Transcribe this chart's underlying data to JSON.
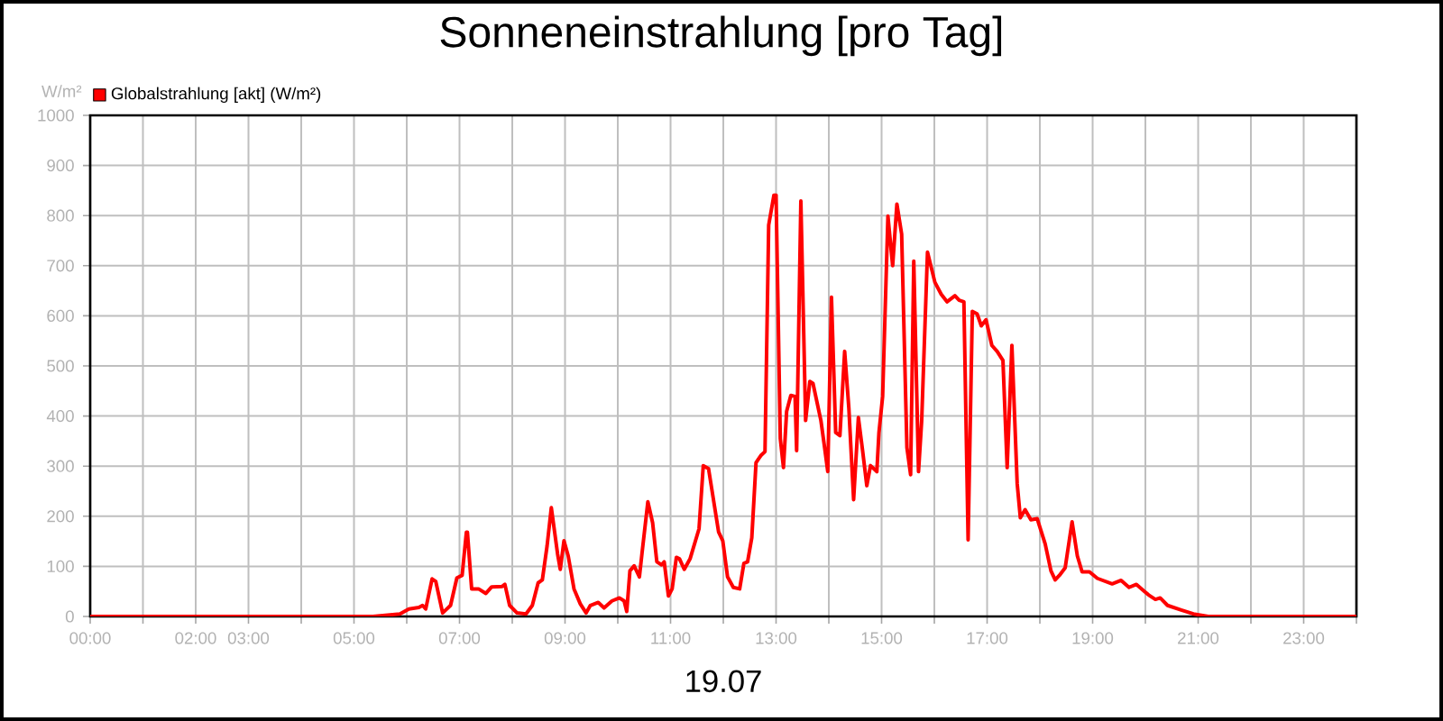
{
  "chart_data": {
    "type": "line",
    "title": "Sonneneinstrahlung [pro Tag]",
    "xlabel": "19.07",
    "ylabel": "W/m²",
    "xlim": [
      0,
      24
    ],
    "ylim": [
      0,
      1000
    ],
    "xticks": [
      {
        "value": 0,
        "label": "00:00"
      },
      {
        "value": 1,
        "label": null
      },
      {
        "value": 2,
        "label": "02:00"
      },
      {
        "value": 3,
        "label": "03:00"
      },
      {
        "value": 4,
        "label": null
      },
      {
        "value": 5,
        "label": "05:00"
      },
      {
        "value": 6,
        "label": null
      },
      {
        "value": 7,
        "label": "07:00"
      },
      {
        "value": 8,
        "label": null
      },
      {
        "value": 9,
        "label": "09:00"
      },
      {
        "value": 10,
        "label": null
      },
      {
        "value": 11,
        "label": "11:00"
      },
      {
        "value": 12,
        "label": null
      },
      {
        "value": 13,
        "label": "13:00"
      },
      {
        "value": 14,
        "label": null
      },
      {
        "value": 15,
        "label": "15:00"
      },
      {
        "value": 16,
        "label": null
      },
      {
        "value": 17,
        "label": "17:00"
      },
      {
        "value": 18,
        "label": null
      },
      {
        "value": 19,
        "label": "19:00"
      },
      {
        "value": 20,
        "label": null
      },
      {
        "value": 21,
        "label": "21:00"
      },
      {
        "value": 22,
        "label": null
      },
      {
        "value": 23,
        "label": "23:00"
      },
      {
        "value": 24,
        "label": null
      }
    ],
    "yticks": [
      0,
      100,
      200,
      300,
      400,
      500,
      600,
      700,
      800,
      900,
      1000
    ],
    "grid": true,
    "legend": "top left",
    "marker": "none",
    "line_style": "solid",
    "series": [
      {
        "name": "Globalstrahlung [akt] (W/m²)",
        "color": "#ff0000",
        "x": [
          0,
          5.36,
          5.87,
          6.04,
          6.23,
          6.3,
          6.36,
          6.48,
          6.55,
          6.68,
          6.83,
          6.95,
          7.05,
          7.13,
          7.15,
          7.23,
          7.36,
          7.5,
          7.61,
          7.81,
          7.86,
          7.95,
          8.09,
          8.26,
          8.38,
          8.49,
          8.57,
          8.66,
          8.74,
          8.86,
          8.91,
          8.98,
          9.06,
          9.17,
          9.29,
          9.4,
          9.48,
          9.63,
          9.74,
          9.89,
          10.03,
          10.12,
          10.17,
          10.23,
          10.31,
          10.41,
          10.46,
          10.57,
          10.66,
          10.74,
          10.83,
          10.88,
          10.96,
          11.03,
          11.11,
          11.17,
          11.26,
          11.37,
          11.54,
          11.62,
          11.72,
          11.91,
          11.99,
          12.08,
          12.19,
          12.31,
          12.39,
          12.46,
          12.54,
          12.62,
          12.71,
          12.79,
          12.86,
          12.96,
          13.0,
          13.08,
          13.14,
          13.2,
          13.28,
          13.36,
          13.39,
          13.47,
          13.56,
          13.64,
          13.7,
          13.85,
          13.92,
          13.98,
          14.05,
          14.13,
          14.21,
          14.3,
          14.38,
          14.47,
          14.56,
          14.64,
          14.72,
          14.79,
          14.91,
          14.95,
          15.02,
          15.12,
          15.21,
          15.29,
          15.38,
          15.48,
          15.55,
          15.61,
          15.7,
          15.76,
          15.87,
          16.01,
          16.13,
          16.24,
          16.39,
          16.47,
          16.56,
          16.64,
          16.72,
          16.81,
          16.89,
          16.98,
          17.09,
          17.19,
          17.3,
          17.38,
          17.47,
          17.57,
          17.63,
          17.72,
          17.83,
          17.95,
          18.1,
          18.21,
          18.29,
          18.37,
          18.48,
          18.61,
          18.71,
          18.8,
          18.94,
          19.09,
          19.37,
          19.54,
          19.69,
          19.83,
          20.06,
          20.19,
          20.28,
          20.42,
          20.68,
          20.91,
          21.19,
          24
        ],
        "values": [
          0,
          0,
          5,
          15,
          18,
          22,
          15,
          75,
          70,
          7,
          22,
          77,
          82,
          168,
          168,
          55,
          55,
          46,
          59,
          60,
          64,
          22,
          7,
          5,
          22,
          67,
          73,
          141,
          217,
          124,
          94,
          151,
          121,
          55,
          25,
          7,
          22,
          28,
          17,
          31,
          37,
          31,
          10,
          91,
          101,
          79,
          127,
          229,
          187,
          109,
          103,
          109,
          41,
          55,
          118,
          115,
          94,
          115,
          175,
          301,
          295,
          169,
          151,
          79,
          58,
          55,
          106,
          109,
          157,
          307,
          321,
          329,
          781,
          841,
          841,
          355,
          297,
          409,
          441,
          439,
          331,
          829,
          391,
          469,
          465,
          391,
          337,
          289,
          637,
          367,
          361,
          529,
          415,
          233,
          397,
          331,
          261,
          301,
          289,
          367,
          439,
          799,
          700,
          823,
          763,
          337,
          283,
          709,
          289,
          391,
          727,
          667,
          643,
          628,
          640,
          631,
          628,
          153,
          609,
          604,
          580,
          592,
          541,
          529,
          511,
          297,
          541,
          265,
          197,
          213,
          193,
          195,
          145,
          91,
          73,
          82,
          97,
          189,
          121,
          89,
          89,
          76,
          65,
          72,
          58,
          64,
          43,
          34,
          37,
          22,
          13,
          5,
          0,
          0
        ]
      }
    ]
  }
}
